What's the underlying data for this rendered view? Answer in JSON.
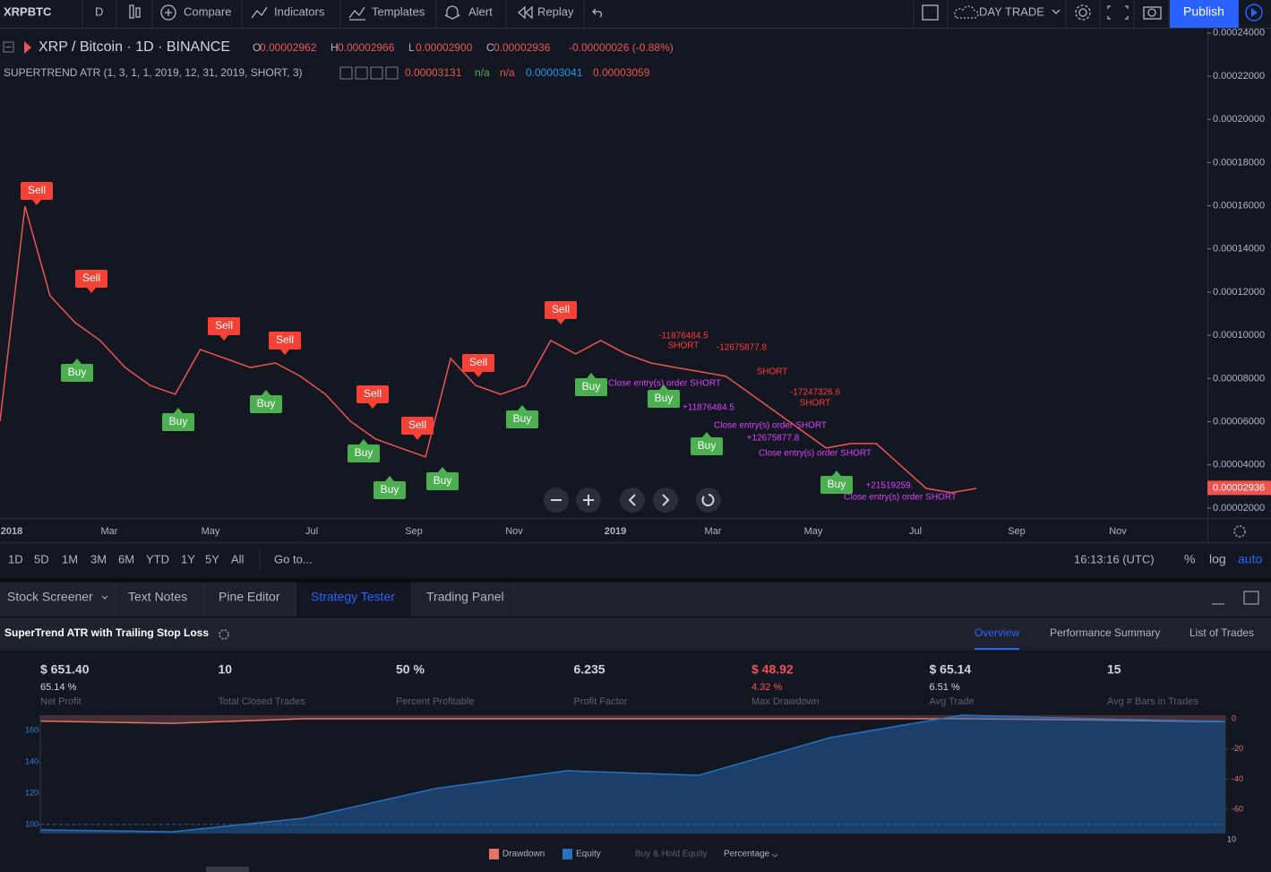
{
  "toolbar": {
    "symbol": "XRPBTC",
    "interval": "D",
    "compare": "Compare",
    "indicators": "Indicators",
    "templates": "Templates",
    "alert": "Alert",
    "replay": "Replay",
    "layout": "DAY TRADE",
    "publish": "Publish"
  },
  "legend": {
    "title": "XRP / Bitcoin · 1D · BINANCE",
    "open_label": "O",
    "open": "0.00002962",
    "high_label": "H",
    "high": "0.00002966",
    "low_label": "L",
    "low": "0.00002900",
    "close_label": "C",
    "close": "0.00002936",
    "change": "-0.00000026 (-0.88%)"
  },
  "indicator": {
    "name": "SUPERTREND ATR (1, 3, 1, 1, 2019, 12, 31, 2019, SHORT, 3)",
    "values": [
      "0.00003131",
      "n/a",
      "n/a",
      "0.00003041",
      "0.00003059"
    ]
  },
  "chart_data": [
    {
      "type": "line",
      "color": "#ef5350",
      "grid": false,
      "price": [
        6.02e-05,
        0.0001598,
        0.0001183,
        0.0001059,
        9.76e-05,
        8.51e-05,
        7.68e-05,
        7.27e-05,
        9.34e-05,
        8.93e-05,
        8.51e-05,
        8.72e-05,
        8.1e-05,
        7.27e-05,
        6.02e-05,
        5.2e-05,
        4.78e-05,
        4.37e-05,
        8.93e-05,
        7.68e-05,
        7.27e-05,
        7.68e-05,
        9.76e-05,
        9.14e-05,
        9.76e-05,
        9.14e-05,
        8.72e-05,
        8.51e-05,
        8.31e-05,
        8.1e-05,
        7.27e-05,
        6.44e-05,
        5.61e-05,
        4.78e-05,
        4.99e-05,
        4.99e-05,
        3.95e-05,
        2.91e-05,
        2.71e-05,
        2.91e-05
      ],
      "ylim": [
        1.54e-05,
        0.000242
      ],
      "yticks": [
        {
          "value": 2e-05,
          "label": "0.00002000"
        },
        {
          "value": 4e-05,
          "label": "0.00004000"
        },
        {
          "value": 6e-05,
          "label": "0.00006000"
        },
        {
          "value": 8e-05,
          "label": "0.00008000"
        },
        {
          "value": 0.0001,
          "label": "0.00010000"
        },
        {
          "value": 0.00012,
          "label": "0.00012000"
        },
        {
          "value": 0.00014,
          "label": "0.00014000"
        },
        {
          "value": 0.00016,
          "label": "0.00016000"
        },
        {
          "value": 0.00018,
          "label": "0.00018000"
        },
        {
          "value": 0.0002,
          "label": "0.00020000"
        },
        {
          "value": 0.00022,
          "label": "0.00022000"
        },
        {
          "value": 0.00024,
          "label": "0.00024000"
        }
      ],
      "last_price": {
        "value": 2.936e-05,
        "label": "0.00002936"
      },
      "time_labels": [
        "2018",
        "Mar",
        "May",
        "Jul",
        "Sep",
        "Nov",
        "2019",
        "Mar",
        "May",
        "Jul",
        "Sep",
        "Nov"
      ],
      "signals": [
        "Sell",
        "Sell",
        "Buy",
        "Sell",
        "Buy",
        "Sell",
        "Buy",
        "Sell",
        "Buy",
        "Sell",
        "Buy",
        "Buy",
        "Sell",
        "Buy",
        "Sell",
        "Buy",
        "Buy",
        "Buy",
        "Buy"
      ],
      "annotations": [
        {
          "text": "-11876484.5",
          "color": "#ff3b3b"
        },
        {
          "text": "SHORT",
          "color": "#ff3b3b"
        },
        {
          "text": "-12675877.8",
          "color": "#ff3b3b"
        },
        {
          "text": "SHORT",
          "color": "#ff3b3b"
        },
        {
          "text": "-17247326.6",
          "color": "#ff3b3b"
        },
        {
          "text": "SHORT",
          "color": "#ff3b3b"
        },
        {
          "text": "Close entry(s) order SHORT",
          "color": "#e040fb"
        },
        {
          "text": "+11876484.5",
          "color": "#e040fb"
        },
        {
          "text": "Close entry(s) order SHORT",
          "color": "#e040fb"
        },
        {
          "text": "+12675877.8",
          "color": "#e040fb"
        },
        {
          "text": "Close entry(s) order SHORT",
          "color": "#e040fb"
        },
        {
          "text": "+21519259.",
          "color": "#e040fb"
        },
        {
          "text": "Close entry(s) order SHORT",
          "color": "#e040fb"
        }
      ]
    },
    {
      "type": "area",
      "series": [
        {
          "name": "Drawdown",
          "color": "#e57366",
          "axis": "y2",
          "values": [
            -1.5,
            -3,
            0,
            0,
            0,
            0,
            0,
            0,
            -0.8,
            -2
          ]
        },
        {
          "name": "Equity",
          "color": "#2672c0",
          "values": [
            96.6,
            95.4,
            104,
            122.9,
            134.3,
            131.4,
            155.4,
            169.7,
            167.5,
            165.7
          ]
        }
      ],
      "ylim": [
        94.3,
        169.7
      ],
      "yticks": [
        100,
        120,
        140,
        160
      ],
      "y2lim": [
        -76,
        2.4
      ],
      "y2ticks": [
        0,
        -20,
        -40,
        -60
      ],
      "corner_label": "10",
      "legend_extra": [
        "Buy & Hold Equity",
        "Percentage"
      ]
    }
  ],
  "range_bar": {
    "ranges": [
      "1D",
      "5D",
      "1M",
      "3M",
      "6M",
      "YTD",
      "1Y",
      "5Y",
      "All"
    ],
    "goto": "Go to...",
    "clock": "16:13:16 (UTC)",
    "percent": "%",
    "log": "log",
    "auto": "auto"
  },
  "panel_tabs": [
    "Stock Screener",
    "Text Notes",
    "Pine Editor",
    "Strategy Tester",
    "Trading Panel"
  ],
  "strategy": {
    "title": "SuperTrend ATR with Trailing Stop Loss",
    "tabs": [
      "Overview",
      "Performance Summary",
      "List of Trades"
    ],
    "metrics": [
      {
        "value": "$ 651.40",
        "sub": "65.14 %",
        "label": "Net Profit"
      },
      {
        "value": "10",
        "label": "Total Closed Trades"
      },
      {
        "value": "50 %",
        "label": "Percent Profitable"
      },
      {
        "value": "6.235",
        "label": "Profit Factor"
      },
      {
        "value": "$ 48.92",
        "sub": "4.32 %",
        "label": "Max Drawdown"
      },
      {
        "value": "$ 65.14",
        "sub": "6.51 %",
        "label": "Avg Trade"
      },
      {
        "value": "15",
        "label": "Avg # Bars in Trades"
      }
    ]
  }
}
